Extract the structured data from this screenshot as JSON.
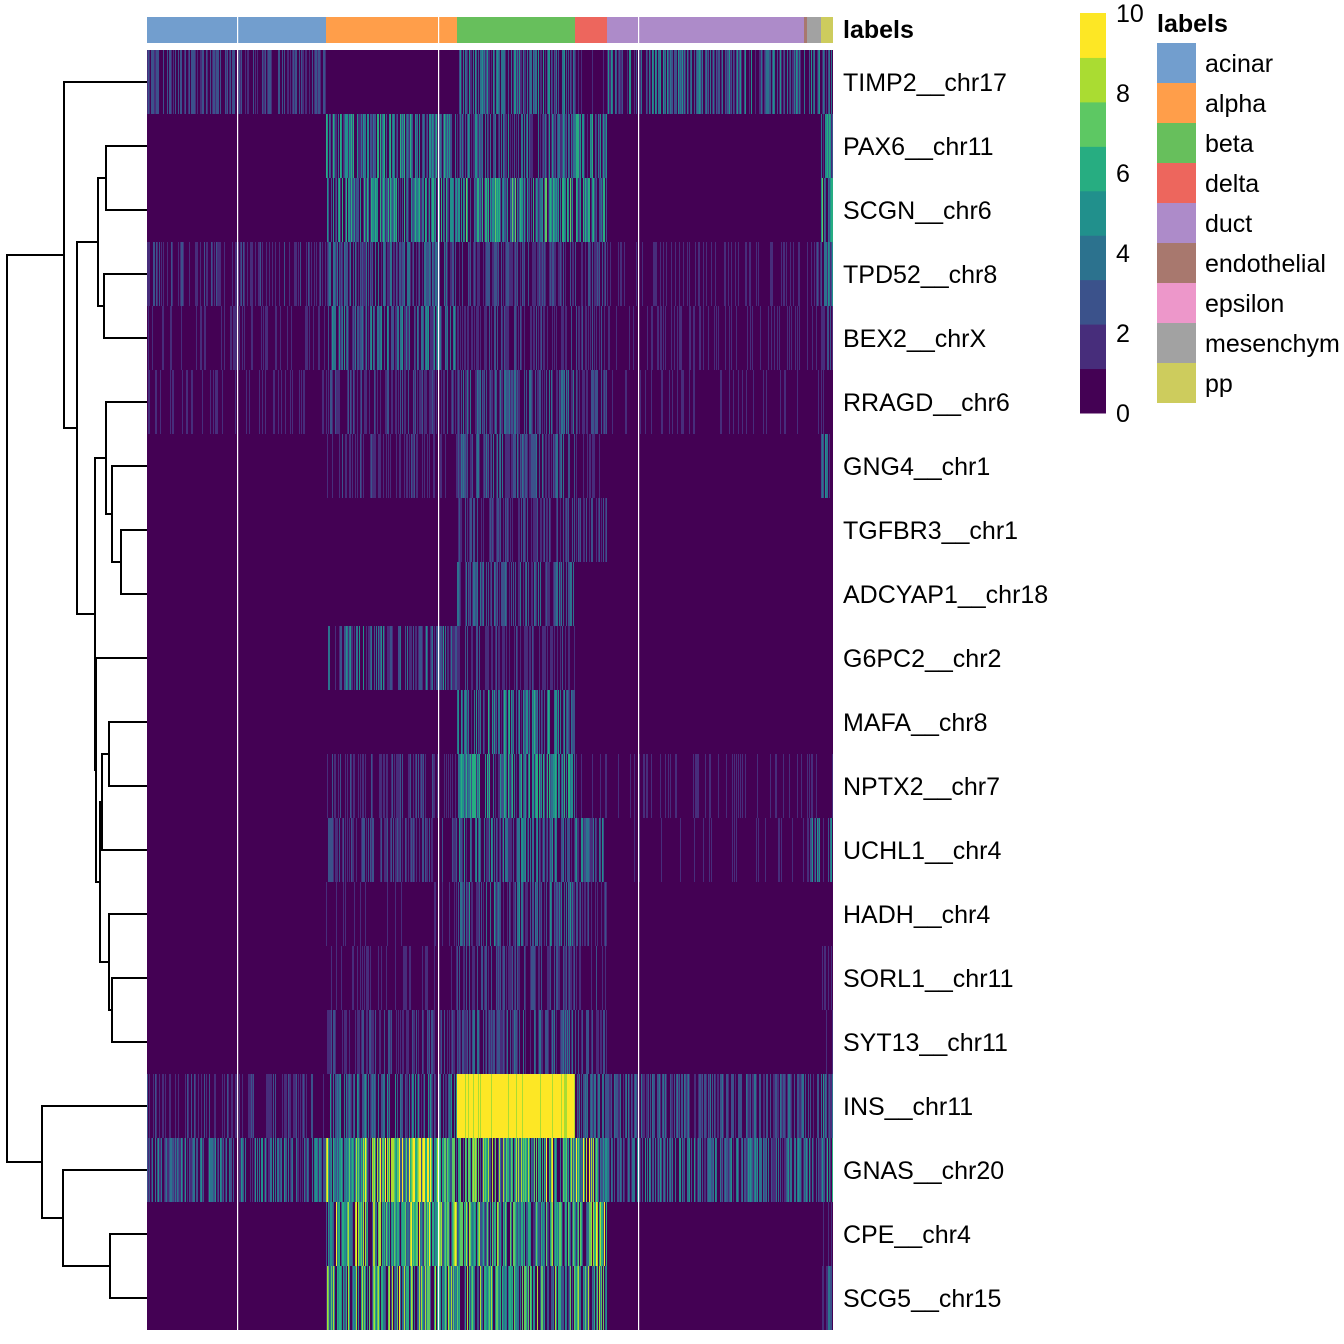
{
  "chart_data": {
    "type": "heatmap",
    "title": "",
    "annotation_title": "labels",
    "rows": [
      "TIMP2__chr17",
      "PAX6__chr11",
      "SCGN__chr6",
      "TPD52__chr8",
      "BEX2__chrX",
      "RRAGD__chr6",
      "GNG4__chr1",
      "TGFBR3__chr1",
      "ADCYAP1__chr18",
      "G6PC2__chr2",
      "MAFA__chr8",
      "NPTX2__chr7",
      "UCHL1__chr4",
      "HADH__chr4",
      "SORL1__chr11",
      "SYT13__chr11",
      "INS__chr11",
      "GNAS__chr20",
      "CPE__chr4",
      "SCG5__chr15"
    ],
    "column_groups": [
      {
        "label": "acinar",
        "color": "#729ECE",
        "n_cells": 179
      },
      {
        "label": "alpha",
        "color": "#FF9E4A",
        "n_cells": 131
      },
      {
        "label": "beta",
        "color": "#67BF5C",
        "n_cells": 118
      },
      {
        "label": "delta",
        "color": "#ED665D",
        "n_cells": 32
      },
      {
        "label": "duct",
        "color": "#AD8BC9",
        "n_cells": 197
      },
      {
        "label": "endothelial",
        "color": "#A8786E",
        "n_cells": 3
      },
      {
        "label": "epsilon",
        "color": "#ED97CA",
        "n_cells": 0
      },
      {
        "label": "mesenchym",
        "color": "#A2A2A2",
        "n_cells": 14
      },
      {
        "label": "pp",
        "color": "#CDCC5D",
        "n_cells": 12
      }
    ],
    "mean_expression_by_group": {
      "groups": [
        "acinar",
        "alpha",
        "beta",
        "delta",
        "duct",
        "endothelial",
        "epsilon",
        "mesenchym",
        "pp"
      ],
      "values": [
        [
          2.0,
          0.5,
          3.0,
          1.0,
          3.0,
          3.0,
          0,
          3.0,
          3.0
        ],
        [
          0.1,
          4.0,
          3.0,
          4.0,
          0.1,
          0.2,
          0,
          0.2,
          4.0
        ],
        [
          0.3,
          4.0,
          4.5,
          4.0,
          0.2,
          0.2,
          0,
          0.2,
          5.0
        ],
        [
          1.5,
          2.5,
          2.0,
          2.0,
          1.0,
          1.0,
          0,
          1.5,
          3.0
        ],
        [
          1.0,
          3.0,
          1.5,
          2.0,
          1.0,
          1.0,
          0,
          1.0,
          2.0
        ],
        [
          1.0,
          1.5,
          2.5,
          2.0,
          0.8,
          0.8,
          0,
          0.8,
          1.0
        ],
        [
          0.5,
          1.5,
          2.5,
          1.0,
          0.5,
          0.5,
          0,
          0.5,
          3.0
        ],
        [
          0.5,
          0.3,
          2.0,
          2.0,
          0.5,
          0.5,
          0,
          0.5,
          0.5
        ],
        [
          0.2,
          0.2,
          2.5,
          0.5,
          0.3,
          0.3,
          0,
          0.3,
          0.2
        ],
        [
          0.2,
          3.0,
          1.5,
          0.5,
          0.3,
          0.3,
          0,
          0.3,
          0.3
        ],
        [
          0.2,
          0.5,
          3.5,
          0.5,
          0.2,
          0.2,
          0,
          0.2,
          0.2
        ],
        [
          0.5,
          1.5,
          4.0,
          1.5,
          1.0,
          1.0,
          0,
          1.0,
          1.0
        ],
        [
          0.3,
          2.0,
          3.0,
          3.0,
          0.8,
          0.8,
          0,
          3.0,
          3.0
        ],
        [
          0.3,
          0.8,
          3.0,
          2.0,
          0.5,
          0.5,
          0,
          0.5,
          0.5
        ],
        [
          0.3,
          1.0,
          2.0,
          1.5,
          0.5,
          0.5,
          0,
          0.5,
          1.0
        ],
        [
          0.2,
          1.5,
          2.5,
          2.0,
          0.5,
          0.5,
          0,
          0.5,
          1.0
        ],
        [
          1.5,
          3.0,
          10.0,
          2.5,
          2.5,
          2.5,
          0,
          2.5,
          3.0
        ],
        [
          3.0,
          6.0,
          5.5,
          6.0,
          3.0,
          3.0,
          0,
          3.0,
          4.0
        ],
        [
          0.5,
          6.0,
          5.0,
          6.0,
          0.5,
          0.5,
          0,
          0.5,
          1.0
        ],
        [
          0.5,
          5.5,
          5.0,
          5.5,
          0.5,
          0.5,
          0,
          0.5,
          3.0
        ]
      ]
    },
    "row_dendrogram": {
      "merges": [
        {
          "a": "PAX6__chr11",
          "b": "SCGN__chr6",
          "height": 41,
          "id": "n1"
        },
        {
          "a": "TPD52__chr8",
          "b": "BEX2__chrX",
          "height": 43,
          "id": "n2"
        },
        {
          "a": "n1",
          "b": "n2",
          "height": 49,
          "id": "n3"
        },
        {
          "a": "TGFBR3__chr1",
          "b": "ADCYAP1__chr18",
          "height": 26,
          "id": "n4"
        },
        {
          "a": "GNG4__chr1",
          "b": "n4",
          "height": 35,
          "id": "n5"
        },
        {
          "a": "RRAGD__chr6",
          "b": "n5",
          "height": 41,
          "id": "n6"
        },
        {
          "a": "MAFA__chr8",
          "b": "NPTX2__chr7",
          "height": 38,
          "id": "n7"
        },
        {
          "a": "n7",
          "b": "UCHL1__chr4",
          "height": 45,
          "id": "n8"
        },
        {
          "a": "SORL1__chr11",
          "b": "SYT13__chr11",
          "height": 35,
          "id": "n9"
        },
        {
          "a": "HADH__chr4",
          "b": "n9",
          "height": 38,
          "id": "n10"
        },
        {
          "a": "n8",
          "b": "n10",
          "height": 47,
          "id": "n11"
        },
        {
          "a": "G6PC2__chr2",
          "b": "n11",
          "height": 51,
          "id": "n12"
        },
        {
          "a": "n6",
          "b": "n12",
          "height": 52,
          "id": "n13"
        },
        {
          "a": "n3",
          "b": "n13",
          "height": 70,
          "id": "n14"
        },
        {
          "a": "TIMP2__chr17",
          "b": "n14",
          "height": 83,
          "id": "n15"
        },
        {
          "a": "CPE__chr4",
          "b": "SCG5__chr15",
          "height": 37,
          "id": "n16"
        },
        {
          "a": "GNAS__chr20",
          "b": "n16",
          "height": 84,
          "id": "n17"
        },
        {
          "a": "INS__chr11",
          "b": "n17",
          "height": 105,
          "id": "n18"
        },
        {
          "a": "n15",
          "b": "n18",
          "height": 140,
          "id": "n19"
        }
      ]
    },
    "colorbar": {
      "range": [
        0,
        10
      ],
      "ticks": [
        "0",
        "2",
        "4",
        "6",
        "8",
        "10"
      ],
      "colors": [
        "#440154",
        "#472D7B",
        "#3B528B",
        "#2C728E",
        "#21908C",
        "#27AD81",
        "#5DC863",
        "#AADC32",
        "#FDE725"
      ]
    },
    "legend": {
      "title": "labels",
      "placement": "right"
    }
  }
}
